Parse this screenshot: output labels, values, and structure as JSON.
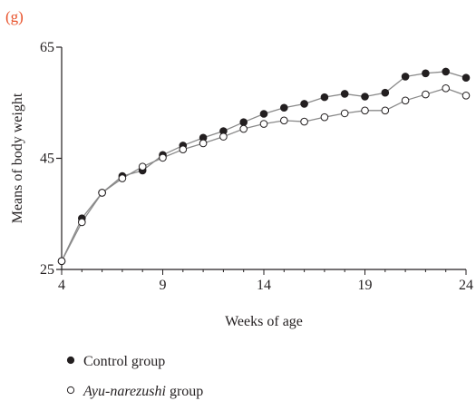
{
  "panel_label": "(g)",
  "colors": {
    "panel_label": "#e8512a",
    "axis": "#231f20",
    "series_line": "#8a8a8a",
    "control_fill": "#231f20",
    "ayu_fill": "#ffffff"
  },
  "chart_data": {
    "type": "line",
    "title": "",
    "xlabel": "Weeks of age",
    "ylabel": "Means of body weight",
    "xlim": [
      4,
      24
    ],
    "ylim": [
      25,
      65
    ],
    "xticks": [
      4,
      9,
      14,
      19,
      24
    ],
    "yticks": [
      25,
      45,
      65
    ],
    "x_tick_labels": [
      "4",
      "9",
      "14",
      "19",
      "24"
    ],
    "y_tick_labels": [
      "25",
      "45",
      "65"
    ],
    "grid": false,
    "legend_position": "bottom",
    "x": [
      4,
      5,
      6,
      7,
      8,
      9,
      10,
      11,
      12,
      13,
      14,
      15,
      16,
      17,
      18,
      19,
      20,
      21,
      22,
      23,
      24
    ],
    "series": [
      {
        "name": "Control group",
        "marker": "filled-circle",
        "values": [
          26.5,
          34.2,
          38.8,
          41.8,
          42.8,
          45.6,
          47.3,
          48.7,
          49.9,
          51.5,
          53.0,
          54.1,
          54.8,
          56.0,
          56.6,
          56.1,
          56.8,
          59.7,
          60.3,
          60.6,
          59.5
        ]
      },
      {
        "name": "Ayu-narezushi group",
        "name_italic": "Ayu-narezushi",
        "name_suffix": " group",
        "marker": "open-circle",
        "values": [
          26.5,
          33.5,
          38.8,
          41.4,
          43.5,
          45.1,
          46.6,
          47.7,
          48.9,
          50.3,
          51.2,
          51.8,
          51.6,
          52.4,
          53.1,
          53.6,
          53.6,
          55.4,
          56.5,
          57.6,
          56.3
        ]
      }
    ]
  }
}
